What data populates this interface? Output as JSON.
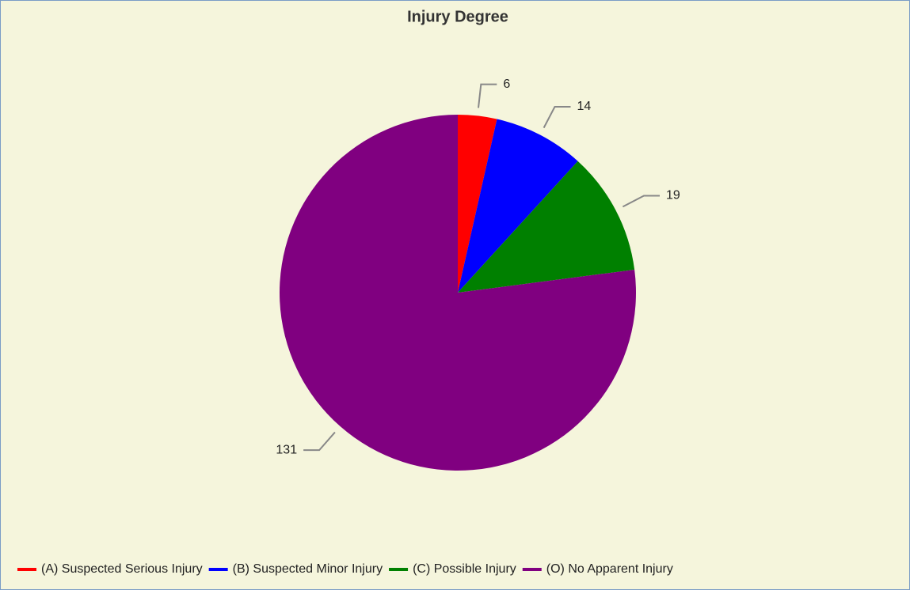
{
  "chart_data": {
    "type": "pie",
    "title": "Injury Degree",
    "categories": [
      "(A) Suspected Serious Injury",
      "(B) Suspected Minor Injury",
      "(C) Possible Injury",
      "(O) No Apparent Injury"
    ],
    "values": [
      6,
      14,
      19,
      131
    ],
    "colors": [
      "#ff0000",
      "#0000ff",
      "#008000",
      "#800080"
    ],
    "legend": "bottom"
  }
}
